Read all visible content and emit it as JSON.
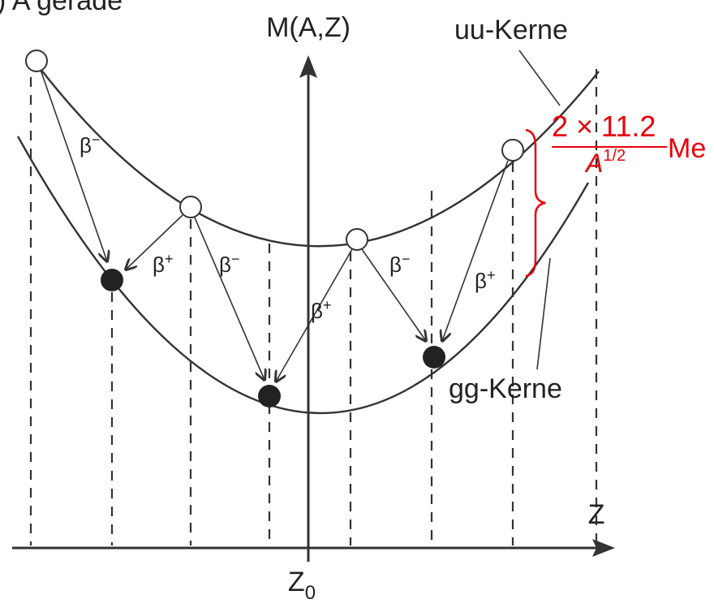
{
  "header": {
    "title": ") A gerade"
  },
  "axes": {
    "y_label": "M(A,Z)",
    "x_label": "Z",
    "origin": {
      "base": "Z",
      "sub": "0"
    }
  },
  "curves": {
    "upper": "uu-Kerne",
    "lower": "gg-Kerne"
  },
  "decays": [
    {
      "symbol": "β",
      "charge": "−"
    },
    {
      "symbol": "β",
      "charge": "+"
    },
    {
      "symbol": "β",
      "charge": "−"
    },
    {
      "symbol": "β",
      "charge": "+"
    },
    {
      "symbol": "β",
      "charge": "−"
    },
    {
      "symbol": "β",
      "charge": "+"
    }
  ],
  "gap": {
    "numerator": "2 × 11.2",
    "denominator": {
      "base": "A",
      "sup": "1/2"
    },
    "unit": "Me"
  }
}
